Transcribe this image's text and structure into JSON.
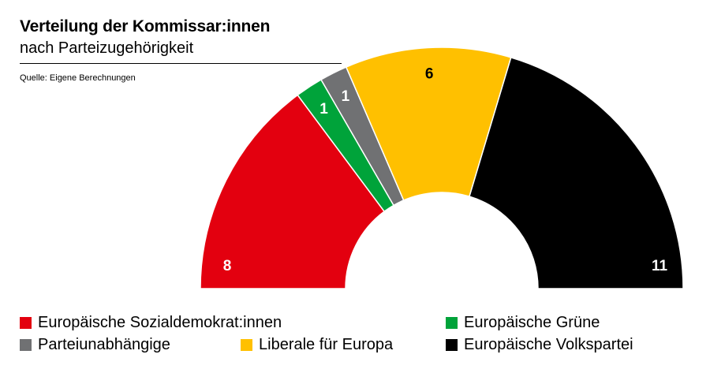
{
  "header": {
    "title": "Verteilung der Kommissar:innen",
    "subtitle": "nach Parteizugehörigkeit",
    "source": "Quelle: Eigene Berechnungen"
  },
  "chart_data": {
    "type": "pie",
    "shape": "half-donut",
    "categories": [
      "Europäische Sozialdemokrat:innen",
      "Europäische Grüne",
      "Parteiunabhängige",
      "Liberale für Europa",
      "Europäische Volkspartei"
    ],
    "values": [
      8,
      1,
      1,
      6,
      11
    ],
    "colors": [
      "#e3000f",
      "#00a33a",
      "#707173",
      "#ffc000",
      "#000000"
    ],
    "data_labels": [
      "8",
      "1",
      "1",
      "6",
      "11"
    ],
    "label_colors": [
      "#ffffff",
      "#ffffff",
      "#ffffff",
      "#000000",
      "#ffffff"
    ],
    "legend_position": "bottom"
  },
  "legend": [
    {
      "label": "Europäische Sozialdemokrat:innen",
      "color": "#e3000f"
    },
    {
      "label": "Europäische Grüne",
      "color": "#00a33a"
    },
    {
      "label": "Parteiunabhängige",
      "color": "#707173"
    },
    {
      "label": "Liberale für Europa",
      "color": "#ffc000"
    },
    {
      "label": "Europäische Volkspartei",
      "color": "#000000"
    }
  ]
}
